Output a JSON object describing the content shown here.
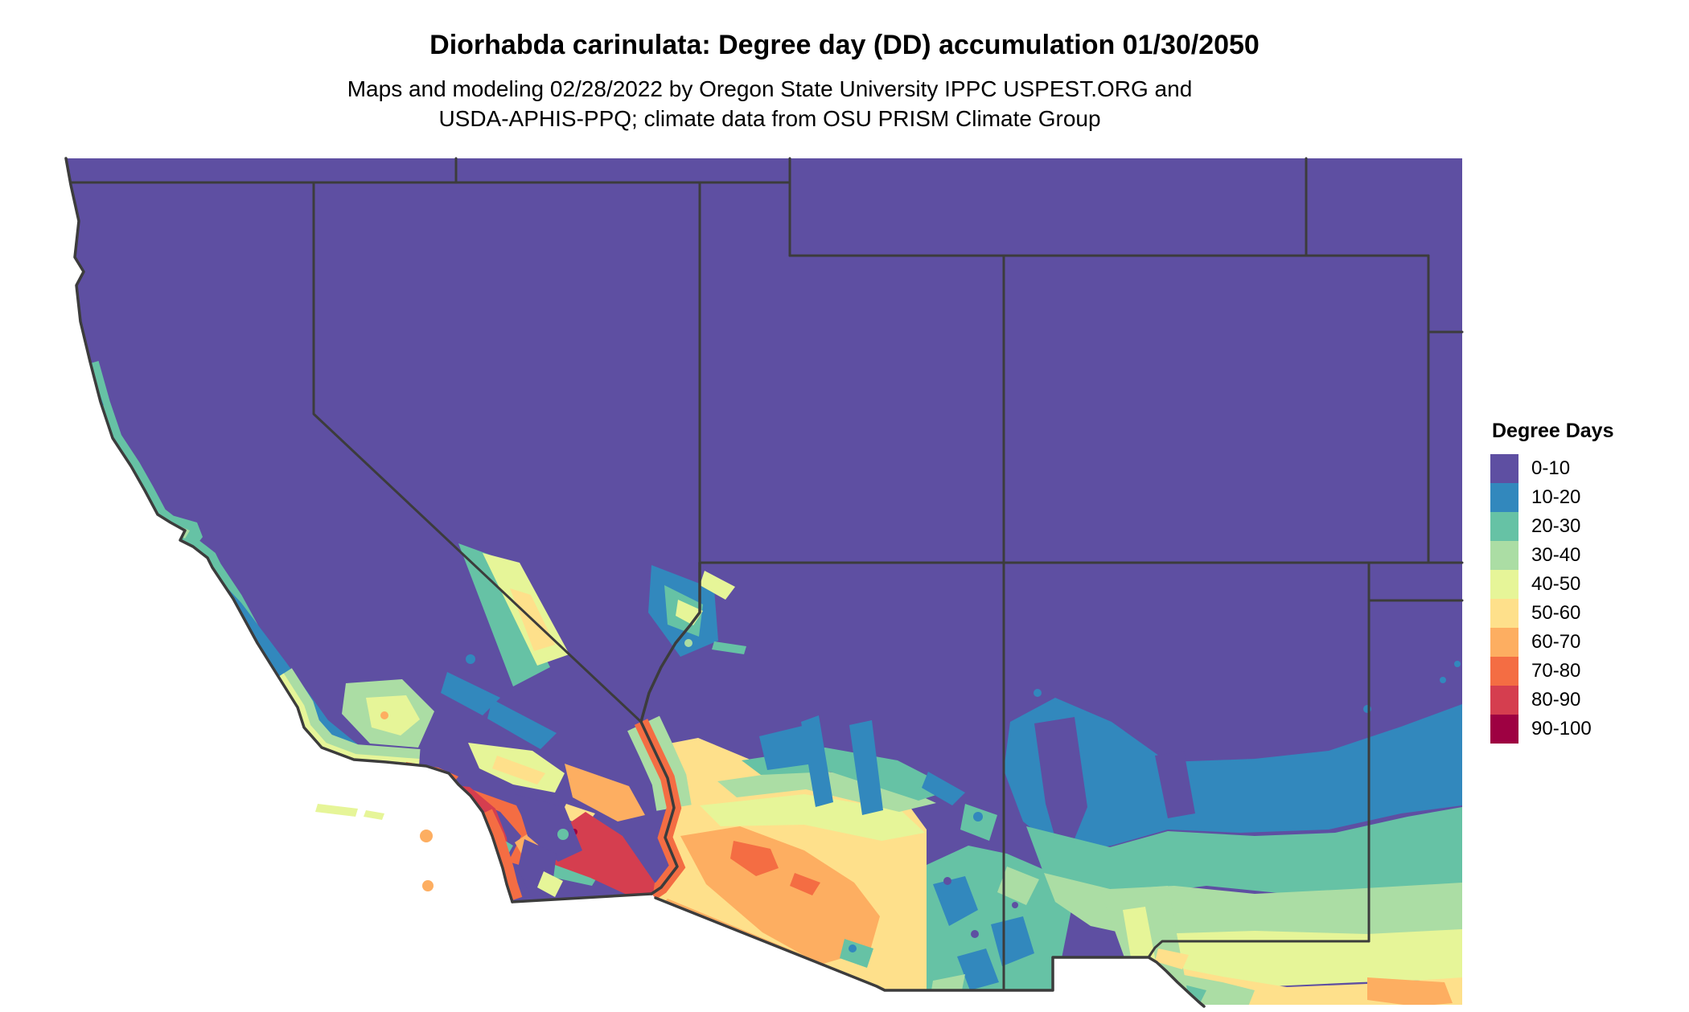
{
  "header": {
    "title": "Diorhabda carinulata: Degree day (DD) accumulation 01/30/2050",
    "subtitle_line1": "Maps and modeling 02/28/2022 by Oregon State University IPPC USPEST.ORG and",
    "subtitle_line2": "USDA-APHIS-PPQ; climate data from OSU PRISM Climate Group"
  },
  "legend": {
    "title": "Degree Days",
    "items": [
      {
        "label": "0-10",
        "color": "#5E4FA2"
      },
      {
        "label": "10-20",
        "color": "#3288BD"
      },
      {
        "label": "20-30",
        "color": "#66C2A5"
      },
      {
        "label": "30-40",
        "color": "#ABDDA4"
      },
      {
        "label": "40-50",
        "color": "#E6F598"
      },
      {
        "label": "50-60",
        "color": "#FEE08B"
      },
      {
        "label": "60-70",
        "color": "#FDAE61"
      },
      {
        "label": "70-80",
        "color": "#F46D43"
      },
      {
        "label": "80-90",
        "color": "#D53E4F"
      },
      {
        "label": "90-100",
        "color": "#9E0142"
      }
    ]
  },
  "map": {
    "line_color": "#3C3C3C",
    "ocean_color": "#FFFFFF"
  }
}
